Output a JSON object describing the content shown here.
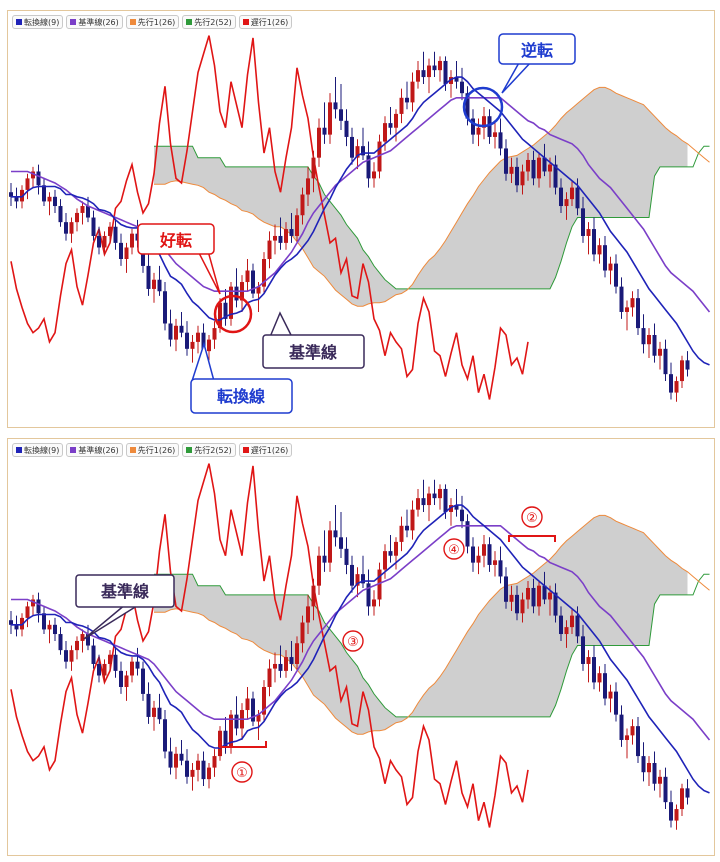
{
  "legend": [
    {
      "label": "転換線(9)",
      "color": "#1f23b8"
    },
    {
      "label": "基準線(26)",
      "color": "#7b3fc8"
    },
    {
      "label": "先行1(26)",
      "color": "#ee8a3c"
    },
    {
      "label": "先行2(52)",
      "color": "#2f9a3a"
    },
    {
      "label": "遅行1(26)",
      "color": "#e01515"
    }
  ],
  "colors": {
    "up": "#c01818",
    "down": "#1a1a78",
    "cloud": "#cfcfcf",
    "red_callout": "#e01515",
    "blue_callout": "#1f3ccf",
    "purple_callout": "#3a2a5a"
  },
  "top_annotations": {
    "kouten": "好転",
    "gyakuten": "逆転",
    "kijunsen": "基準線",
    "tenkansen": "転換線"
  },
  "bottom_annotations": {
    "kijunsen": "基準線",
    "n1": "①",
    "n2": "②",
    "n3": "③",
    "n4": "④"
  },
  "chart_data": {
    "type": "candlestick",
    "ohlc": [
      [
        240,
        248,
        228,
        236
      ],
      [
        236,
        244,
        226,
        232
      ],
      [
        232,
        246,
        226,
        242
      ],
      [
        242,
        256,
        234,
        252
      ],
      [
        252,
        262,
        244,
        258
      ],
      [
        258,
        264,
        238,
        246
      ],
      [
        246,
        252,
        228,
        232
      ],
      [
        232,
        240,
        220,
        236
      ],
      [
        236,
        242,
        222,
        228
      ],
      [
        228,
        234,
        210,
        214
      ],
      [
        214,
        222,
        198,
        204
      ],
      [
        204,
        218,
        196,
        214
      ],
      [
        214,
        226,
        206,
        222
      ],
      [
        222,
        232,
        212,
        228
      ],
      [
        228,
        236,
        214,
        218
      ],
      [
        218,
        224,
        198,
        202
      ],
      [
        202,
        210,
        186,
        192
      ],
      [
        192,
        206,
        186,
        202
      ],
      [
        202,
        214,
        196,
        210
      ],
      [
        210,
        216,
        190,
        196
      ],
      [
        196,
        204,
        176,
        182
      ],
      [
        182,
        196,
        170,
        192
      ],
      [
        192,
        208,
        186,
        204
      ],
      [
        204,
        216,
        192,
        198
      ],
      [
        198,
        204,
        170,
        176
      ],
      [
        176,
        186,
        150,
        156
      ],
      [
        156,
        170,
        144,
        164
      ],
      [
        164,
        176,
        150,
        154
      ],
      [
        154,
        162,
        120,
        126
      ],
      [
        126,
        138,
        106,
        112
      ],
      [
        112,
        130,
        102,
        124
      ],
      [
        124,
        136,
        114,
        118
      ],
      [
        118,
        128,
        98,
        104
      ],
      [
        104,
        116,
        92,
        110
      ],
      [
        110,
        124,
        100,
        118
      ],
      [
        118,
        126,
        96,
        102
      ],
      [
        102,
        116,
        94,
        112
      ],
      [
        112,
        128,
        104,
        122
      ],
      [
        122,
        148,
        118,
        144
      ],
      [
        144,
        156,
        124,
        130
      ],
      [
        130,
        162,
        124,
        158
      ],
      [
        158,
        174,
        140,
        146
      ],
      [
        146,
        168,
        136,
        162
      ],
      [
        162,
        182,
        154,
        172
      ],
      [
        172,
        178,
        148,
        152
      ],
      [
        152,
        162,
        136,
        158
      ],
      [
        158,
        188,
        152,
        182
      ],
      [
        182,
        206,
        174,
        198
      ],
      [
        198,
        212,
        186,
        202
      ],
      [
        202,
        218,
        190,
        196
      ],
      [
        196,
        214,
        190,
        208
      ],
      [
        208,
        222,
        196,
        202
      ],
      [
        202,
        226,
        196,
        220
      ],
      [
        220,
        244,
        212,
        238
      ],
      [
        238,
        262,
        228,
        252
      ],
      [
        252,
        276,
        240,
        270
      ],
      [
        270,
        304,
        262,
        296
      ],
      [
        296,
        318,
        282,
        290
      ],
      [
        290,
        326,
        282,
        318
      ],
      [
        318,
        340,
        304,
        312
      ],
      [
        312,
        334,
        294,
        302
      ],
      [
        302,
        312,
        280,
        288
      ],
      [
        288,
        296,
        264,
        270
      ],
      [
        270,
        286,
        260,
        280
      ],
      [
        280,
        296,
        268,
        272
      ],
      [
        272,
        284,
        244,
        252
      ],
      [
        252,
        266,
        244,
        258
      ],
      [
        258,
        290,
        252,
        284
      ],
      [
        284,
        306,
        276,
        300
      ],
      [
        300,
        314,
        290,
        296
      ],
      [
        296,
        312,
        284,
        308
      ],
      [
        308,
        330,
        300,
        322
      ],
      [
        322,
        336,
        312,
        318
      ],
      [
        318,
        344,
        310,
        336
      ],
      [
        336,
        354,
        330,
        346
      ],
      [
        346,
        362,
        334,
        340
      ],
      [
        340,
        356,
        326,
        350
      ],
      [
        350,
        362,
        340,
        346
      ],
      [
        346,
        358,
        336,
        354
      ],
      [
        354,
        358,
        328,
        334
      ],
      [
        334,
        346,
        322,
        340
      ],
      [
        340,
        354,
        330,
        336
      ],
      [
        336,
        348,
        320,
        326
      ],
      [
        326,
        332,
        298,
        304
      ],
      [
        304,
        312,
        282,
        290
      ],
      [
        290,
        304,
        280,
        296
      ],
      [
        296,
        314,
        286,
        306
      ],
      [
        306,
        312,
        282,
        288
      ],
      [
        288,
        300,
        278,
        292
      ],
      [
        292,
        304,
        272,
        278
      ],
      [
        278,
        286,
        250,
        256
      ],
      [
        256,
        270,
        248,
        262
      ],
      [
        262,
        270,
        240,
        246
      ],
      [
        246,
        264,
        238,
        258
      ],
      [
        258,
        274,
        250,
        268
      ],
      [
        268,
        276,
        246,
        252
      ],
      [
        252,
        274,
        244,
        270
      ],
      [
        270,
        282,
        254,
        258
      ],
      [
        258,
        270,
        244,
        264
      ],
      [
        264,
        272,
        238,
        244
      ],
      [
        244,
        252,
        222,
        228
      ],
      [
        228,
        240,
        216,
        234
      ],
      [
        234,
        250,
        228,
        244
      ],
      [
        244,
        252,
        220,
        226
      ],
      [
        226,
        236,
        196,
        202
      ],
      [
        202,
        214,
        186,
        208
      ],
      [
        208,
        218,
        180,
        186
      ],
      [
        186,
        200,
        178,
        194
      ],
      [
        194,
        202,
        166,
        172
      ],
      [
        172,
        184,
        160,
        178
      ],
      [
        178,
        186,
        152,
        158
      ],
      [
        158,
        166,
        130,
        136
      ],
      [
        136,
        146,
        120,
        140
      ],
      [
        140,
        154,
        132,
        148
      ],
      [
        148,
        156,
        116,
        122
      ],
      [
        122,
        134,
        100,
        108
      ],
      [
        108,
        122,
        96,
        116
      ],
      [
        116,
        126,
        92,
        98
      ],
      [
        98,
        110,
        86,
        104
      ],
      [
        104,
        112,
        76,
        82
      ],
      [
        82,
        92,
        60,
        66
      ],
      [
        66,
        80,
        58,
        76
      ],
      [
        76,
        98,
        70,
        94
      ],
      [
        94,
        102,
        80,
        86
      ]
    ],
    "tenkan": [
      236,
      236,
      236,
      241,
      244,
      245,
      245,
      245,
      245,
      243,
      238,
      238,
      236,
      235,
      233,
      230,
      225,
      224,
      222,
      216,
      212,
      210,
      209,
      209,
      206,
      200,
      192,
      186,
      176,
      167,
      164,
      160,
      152,
      145,
      141,
      136,
      131,
      129,
      129,
      132,
      134,
      135,
      137,
      144,
      146,
      147,
      152,
      160,
      168,
      174,
      179,
      182,
      186,
      192,
      198,
      206,
      216,
      226,
      234,
      244,
      252,
      260,
      266,
      272,
      274,
      274,
      274,
      278,
      282,
      286,
      290,
      294,
      298,
      304,
      312,
      318,
      322,
      326,
      330,
      334,
      338,
      340,
      340,
      336,
      330,
      326,
      322,
      318,
      314,
      310,
      304,
      298,
      292,
      286,
      282,
      278,
      274,
      270,
      266,
      262,
      258,
      254,
      250,
      246,
      240,
      234,
      228,
      222,
      214,
      206,
      200,
      194,
      188,
      180,
      172,
      164,
      156,
      150,
      144,
      138,
      132,
      126,
      118,
      110,
      102,
      96,
      92,
      90,
      88
    ],
    "kijun": [
      258,
      258,
      258,
      258,
      256,
      254,
      252,
      250,
      248,
      245,
      242,
      238,
      234,
      231,
      228,
      226,
      224,
      222,
      220,
      218,
      216,
      214,
      212,
      210,
      208,
      206,
      202,
      196,
      190,
      184,
      178,
      174,
      170,
      166,
      162,
      158,
      156,
      154,
      154,
      154,
      154,
      154,
      154,
      154,
      156,
      158,
      162,
      166,
      170,
      176,
      182,
      188,
      196,
      204,
      214,
      222,
      228,
      234,
      240,
      246,
      250,
      254,
      258,
      262,
      266,
      268,
      270,
      272,
      274,
      276,
      280,
      284,
      288,
      292,
      296,
      300,
      304,
      308,
      312,
      316,
      320,
      322,
      322,
      322,
      322,
      322,
      322,
      322,
      322,
      322,
      318,
      314,
      310,
      306,
      302,
      300,
      296,
      294,
      290,
      288,
      286,
      284,
      282,
      278,
      272,
      264,
      258,
      252,
      248,
      244,
      238,
      232,
      226,
      220,
      214,
      208,
      200,
      192,
      184,
      176,
      170,
      166,
      162,
      158,
      154,
      148,
      142,
      136,
      132
    ],
    "senkou1": [
      null,
      null,
      null,
      null,
      null,
      null,
      null,
      null,
      null,
      null,
      null,
      null,
      null,
      null,
      null,
      null,
      null,
      null,
      null,
      null,
      null,
      null,
      null,
      null,
      null,
      null,
      247,
      247,
      247,
      249,
      250,
      249,
      248,
      247,
      246,
      244,
      240,
      238,
      235,
      233,
      230,
      228,
      224,
      223,
      221,
      217,
      214,
      212,
      210,
      210,
      207,
      203,
      197,
      191,
      183,
      175,
      171,
      167,
      161,
      155,
      151,
      147,
      143,
      141,
      141,
      143,
      144,
      144,
      145,
      148,
      151,
      152,
      155,
      160,
      168,
      175,
      181,
      185,
      191,
      198,
      206,
      214,
      222,
      230,
      237,
      245,
      251,
      257,
      262,
      267,
      270,
      271,
      272,
      275,
      278,
      281,
      285,
      289,
      293,
      298,
      304,
      309,
      313,
      317,
      321,
      325,
      329,
      331,
      331,
      329,
      326,
      324,
      322,
      320,
      318,
      316,
      311,
      306,
      301,
      296,
      292,
      289,
      285,
      282,
      278,
      274,
      270,
      266,
      262
    ],
    "senkou2": [
      null,
      null,
      null,
      null,
      null,
      null,
      null,
      null,
      null,
      null,
      null,
      null,
      null,
      null,
      null,
      null,
      null,
      null,
      null,
      null,
      null,
      null,
      null,
      null,
      null,
      null,
      280,
      280,
      280,
      280,
      280,
      280,
      280,
      280,
      270,
      270,
      270,
      270,
      270,
      262,
      262,
      262,
      262,
      262,
      262,
      262,
      262,
      262,
      262,
      262,
      262,
      262,
      262,
      262,
      262,
      254,
      248,
      238,
      232,
      226,
      220,
      212,
      206,
      200,
      190,
      184,
      176,
      170,
      164,
      160,
      156,
      156,
      156,
      156,
      156,
      156,
      156,
      156,
      156,
      156,
      156,
      156,
      156,
      156,
      156,
      156,
      156,
      156,
      156,
      156,
      156,
      156,
      156,
      156,
      156,
      156,
      156,
      156,
      156,
      166,
      180,
      196,
      210,
      218,
      218,
      218,
      218,
      218,
      218,
      218,
      218,
      218,
      218,
      218,
      218,
      218,
      218,
      254,
      262,
      262,
      262,
      262,
      262,
      262,
      262,
      274,
      280,
      280,
      280,
      280
    ],
    "chikou": [
      180,
      156,
      140,
      126,
      118,
      122,
      130,
      110,
      118,
      150,
      178,
      190,
      158,
      142,
      168,
      196,
      208,
      186,
      196,
      226,
      232,
      250,
      264,
      240,
      222,
      230,
      256,
      300,
      332,
      282,
      252,
      248,
      276,
      310,
      344,
      360,
      376,
      350,
      310,
      296,
      336,
      316,
      296,
      342,
      374,
      318,
      274,
      296,
      258,
      240,
      270,
      296,
      348,
      324,
      304,
      270,
      244,
      220,
      196,
      200,
      170,
      182,
      150,
      148,
      178,
      162,
      130,
      120,
      98,
      118,
      110,
      104,
      80,
      86,
      126,
      148,
      136,
      102,
      98,
      80,
      100,
      118,
      90,
      78,
      98,
      66,
      82,
      60,
      88,
      122,
      116,
      90,
      96,
      82,
      110
    ]
  }
}
